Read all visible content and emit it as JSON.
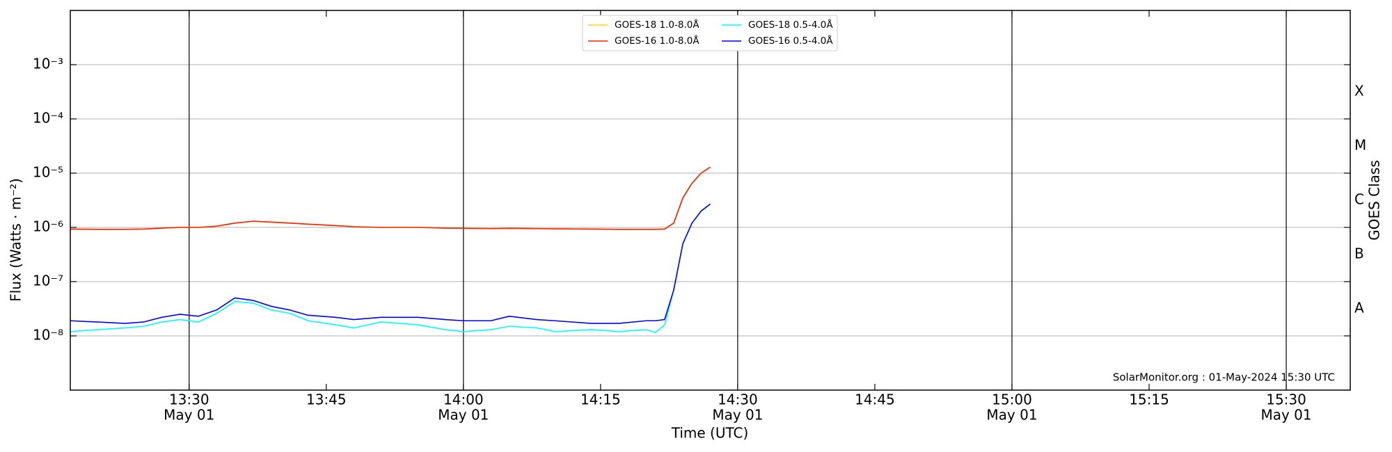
{
  "chart_data": {
    "type": "line",
    "ylabel": "Flux (Watts · m⁻²)",
    "xlabel": "Time (UTC)",
    "y2label": "GOES Class",
    "annotation": "SolarMonitor.org : 01-May-2024 15:30 UTC",
    "log_y": true,
    "grid": true,
    "legend": "top",
    "xlim": [
      "13:17",
      "15:37"
    ],
    "xticks": [
      {
        "value": "13:30",
        "label": "13:30",
        "date": "May 01"
      },
      {
        "value": "13:45",
        "label": "13:45"
      },
      {
        "value": "14:00",
        "label": "14:00",
        "date": "May 01"
      },
      {
        "value": "14:15",
        "label": "14:15"
      },
      {
        "value": "14:30",
        "label": "14:30",
        "date": "May 01"
      },
      {
        "value": "14:45",
        "label": "14:45"
      },
      {
        "value": "15:00",
        "label": "15:00",
        "date": "May 01"
      },
      {
        "value": "15:15",
        "label": "15:15"
      },
      {
        "value": "15:30",
        "label": "15:30",
        "date": "May 01"
      }
    ],
    "ylim": [
      1e-09,
      0.01
    ],
    "yticks": [
      {
        "value": 1e-08,
        "label": "10⁻⁸"
      },
      {
        "value": 1e-07,
        "label": "10⁻⁷"
      },
      {
        "value": 1e-06,
        "label": "10⁻⁶"
      },
      {
        "value": 1e-05,
        "label": "10⁻⁵"
      },
      {
        "value": 0.0001,
        "label": "10⁻⁴"
      },
      {
        "value": 0.001,
        "label": "10⁻³"
      }
    ],
    "y2lim": [
      1e-09,
      0.01
    ],
    "y2ticks": [
      {
        "value": 3.16e-08,
        "label": "A"
      },
      {
        "value": 3.16e-07,
        "label": "B"
      },
      {
        "value": 3.16e-06,
        "label": "C"
      },
      {
        "value": 3.16e-05,
        "label": "M"
      },
      {
        "value": 0.000316,
        "label": "X"
      }
    ],
    "x": [
      "13:17",
      "13:20",
      "13:23",
      "13:25",
      "13:27",
      "13:29",
      "13:31",
      "13:33",
      "13:35",
      "13:37",
      "13:39",
      "13:41",
      "13:43",
      "13:46",
      "13:48",
      "13:51",
      "13:55",
      "13:58",
      "14:00",
      "14:03",
      "14:05",
      "14:08",
      "14:10",
      "14:14",
      "14:17",
      "14:20",
      "14:21",
      "14:22",
      "14:23",
      "14:24",
      "14:25",
      "14:26",
      "14:27"
    ],
    "series": [
      {
        "name": "GOES-18 1.0-8.0Å",
        "color": "#ffd700",
        "values": [
          9.3e-07,
          9.2e-07,
          9.2e-07,
          9.3e-07,
          9.7e-07,
          1e-06,
          1e-06,
          1.05e-06,
          1.2e-06,
          1.3e-06,
          1.25e-06,
          1.2e-06,
          1.15e-06,
          1.08e-06,
          1.03e-06,
          1e-06,
          1e-06,
          9.7e-07,
          9.6e-07,
          9.5e-07,
          9.6e-07,
          9.5e-07,
          9.4e-07,
          9.3e-07,
          9.2e-07,
          9.2e-07,
          9.2e-07,
          9.3e-07,
          1.2e-06,
          3.5e-06,
          6.5e-06,
          1e-05,
          1.3e-05
        ]
      },
      {
        "name": "GOES-16 1.0-8.0Å",
        "color": "#ff2000",
        "values": [
          9.3e-07,
          9.2e-07,
          9.2e-07,
          9.3e-07,
          9.7e-07,
          1e-06,
          1e-06,
          1.05e-06,
          1.2e-06,
          1.3e-06,
          1.25e-06,
          1.2e-06,
          1.15e-06,
          1.08e-06,
          1.03e-06,
          1e-06,
          1e-06,
          9.7e-07,
          9.6e-07,
          9.5e-07,
          9.6e-07,
          9.5e-07,
          9.4e-07,
          9.3e-07,
          9.2e-07,
          9.2e-07,
          9.2e-07,
          9.3e-07,
          1.2e-06,
          3.5e-06,
          6.5e-06,
          1e-05,
          1.3e-05
        ]
      },
      {
        "name": "GOES-18 0.5-4.0Å",
        "color": "#00ffff",
        "values": [
          1.2e-08,
          1.3e-08,
          1.4e-08,
          1.5e-08,
          1.8e-08,
          2e-08,
          1.8e-08,
          2.6e-08,
          4.3e-08,
          4e-08,
          3e-08,
          2.6e-08,
          1.9e-08,
          1.6e-08,
          1.4e-08,
          1.8e-08,
          1.6e-08,
          1.3e-08,
          1.2e-08,
          1.3e-08,
          1.5e-08,
          1.4e-08,
          1.2e-08,
          1.3e-08,
          1.2e-08,
          1.3e-08,
          1.15e-08,
          1.6e-08,
          7e-08,
          5e-07,
          1.2e-06,
          2e-06,
          2.7e-06
        ]
      },
      {
        "name": "GOES-16 0.5-4.0Å",
        "color": "#0000ff",
        "values": [
          1.9e-08,
          1.8e-08,
          1.7e-08,
          1.8e-08,
          2.2e-08,
          2.5e-08,
          2.3e-08,
          3e-08,
          5e-08,
          4.5e-08,
          3.5e-08,
          3e-08,
          2.4e-08,
          2.2e-08,
          2e-08,
          2.2e-08,
          2.2e-08,
          2e-08,
          1.9e-08,
          1.9e-08,
          2.3e-08,
          2e-08,
          1.9e-08,
          1.7e-08,
          1.7e-08,
          1.9e-08,
          1.9e-08,
          2e-08,
          7e-08,
          5e-07,
          1.2e-06,
          2e-06,
          2.7e-06
        ]
      }
    ]
  }
}
